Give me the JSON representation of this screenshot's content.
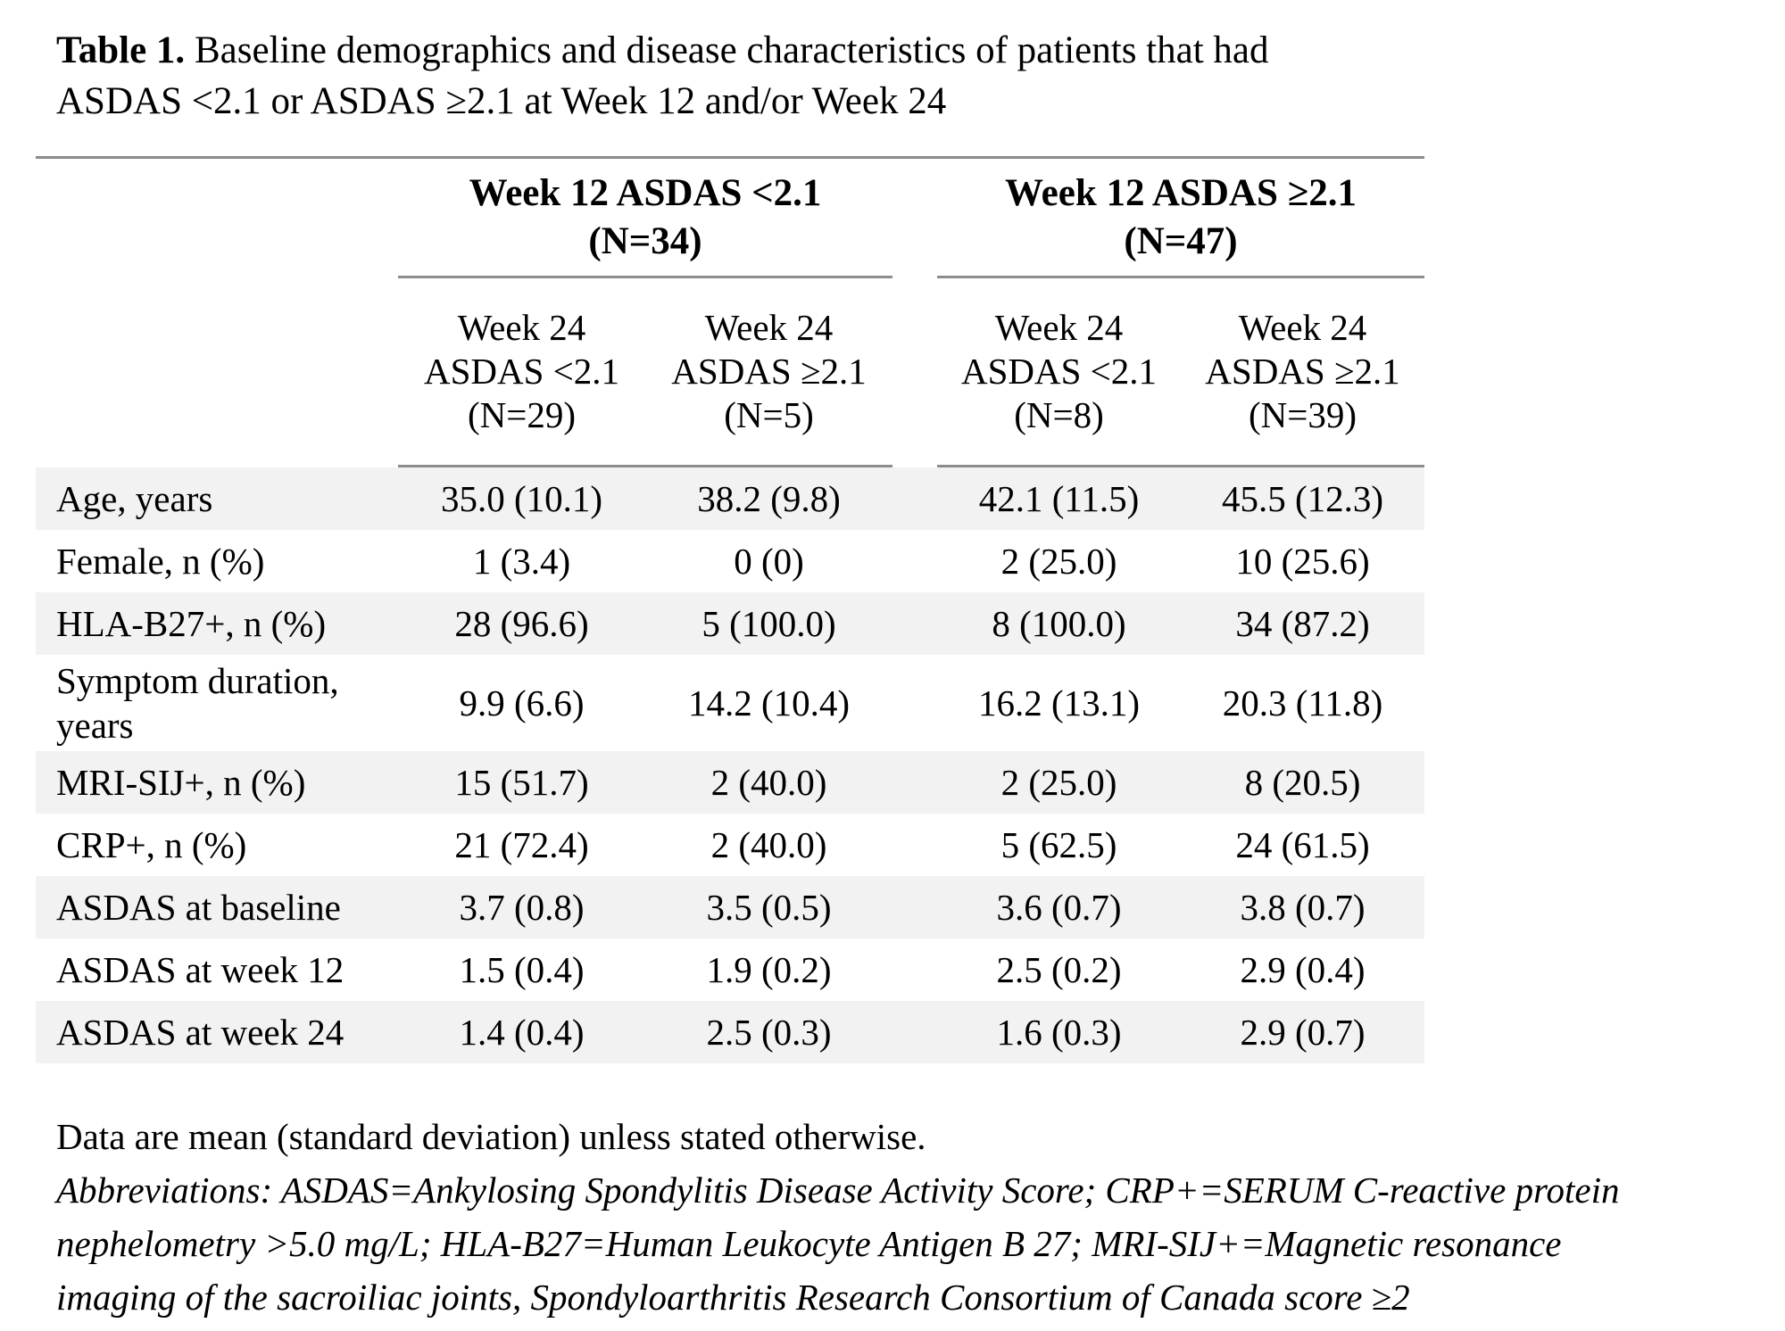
{
  "title": {
    "label": "Table 1.",
    "line1": " Baseline demographics and disease characteristics of patients that had",
    "line2": "ASDAS <2.1 or ASDAS ≥2.1 at Week 12 and/or Week 24"
  },
  "table": {
    "groups": [
      {
        "title": "Week 12 ASDAS <2.1",
        "n": "(N=34)"
      },
      {
        "title": "Week 12 ASDAS ≥2.1",
        "n": "(N=47)"
      }
    ],
    "subcolumns": [
      {
        "week": "Week 24",
        "criteria": "ASDAS <2.1",
        "n": "(N=29)"
      },
      {
        "week": "Week 24",
        "criteria": "ASDAS ≥2.1",
        "n": "(N=5)"
      },
      {
        "week": "Week 24",
        "criteria": "ASDAS <2.1",
        "n": "(N=8)"
      },
      {
        "week": "Week 24",
        "criteria": "ASDAS ≥2.1",
        "n": "(N=39)"
      }
    ],
    "rows": [
      {
        "label": "Age, years",
        "values": [
          "35.0 (10.1)",
          "38.2 (9.8)",
          "42.1 (11.5)",
          "45.5 (12.3)"
        ]
      },
      {
        "label": "Female, n (%)",
        "values": [
          "1 (3.4)",
          "0 (0)",
          "2 (25.0)",
          "10 (25.6)"
        ]
      },
      {
        "label": "HLA-B27+, n (%)",
        "values": [
          "28 (96.6)",
          "5 (100.0)",
          "8 (100.0)",
          "34 (87.2)"
        ]
      },
      {
        "label": "Symptom duration, years",
        "values": [
          "9.9 (6.6)",
          "14.2 (10.4)",
          "16.2 (13.1)",
          "20.3 (11.8)"
        ]
      },
      {
        "label": "MRI-SIJ+, n (%)",
        "values": [
          "15 (51.7)",
          "2 (40.0)",
          "2 (25.0)",
          "8 (20.5)"
        ]
      },
      {
        "label": "CRP+, n (%)",
        "values": [
          "21 (72.4)",
          "2 (40.0)",
          "5 (62.5)",
          "24 (61.5)"
        ]
      },
      {
        "label": "ASDAS at baseline",
        "values": [
          "3.7 (0.8)",
          "3.5 (0.5)",
          "3.6 (0.7)",
          "3.8 (0.7)"
        ]
      },
      {
        "label": "ASDAS at week 12",
        "values": [
          "1.5 (0.4)",
          "1.9 (0.2)",
          "2.5 (0.2)",
          "2.9 (0.4)"
        ]
      },
      {
        "label": "ASDAS at week 24",
        "values": [
          "1.4 (0.4)",
          "2.5 (0.3)",
          "1.6 (0.3)",
          "2.9 (0.7)"
        ]
      }
    ]
  },
  "footnotes": {
    "data_note": "Data are mean (standard deviation) unless stated otherwise.",
    "abbreviations": "Abbreviations: ASDAS=Ankylosing Spondylitis Disease Activity Score; CRP+=SERUM C-reactive protein nephelometry >5.0 mg/L; HLA-B27=Human Leukocyte Antigen B 27; MRI-SIJ+=Magnetic resonance imaging of the sacroiliac joints, Spondyloarthritis Research Consortium of Canada score ≥2"
  },
  "colors": {
    "background": "#ffffff",
    "text": "#000000",
    "row_stripe": "#f2f2f2",
    "rule": "#8c8c8c"
  }
}
